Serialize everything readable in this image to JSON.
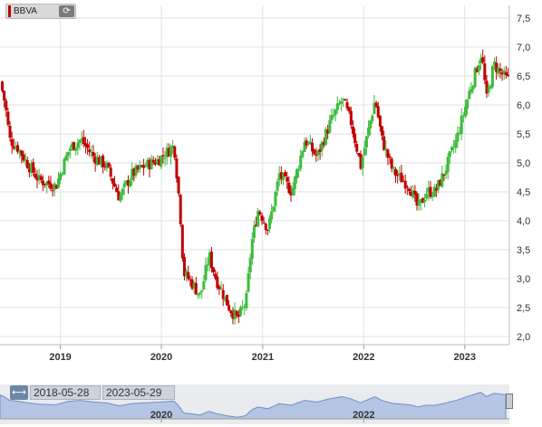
{
  "ticker": {
    "label": "BBVA"
  },
  "icons": {
    "refresh": "refresh-icon",
    "range_handle": "double-arrow-icon"
  },
  "navigator": {
    "start_date": "2018-05-28",
    "end_date": "2023-05-29",
    "x_labels": [
      "2020",
      "2022"
    ]
  },
  "colors": {
    "up": "#3dbb3d",
    "down": "#c00000",
    "grid": "#e2e2e2",
    "navigator_fill": "#b4c6e4"
  },
  "chart_data": {
    "type": "candlestick",
    "title": "",
    "xlabel": "",
    "ylabel": "",
    "x_ticks": [
      "2019",
      "2020",
      "2021",
      "2022",
      "2023"
    ],
    "y_ticks": [
      "2,0",
      "2,5",
      "3,0",
      "3,5",
      "4,0",
      "4,5",
      "5,0",
      "5,5",
      "6,0",
      "6,5",
      "7,0",
      "7,5"
    ],
    "ylim": [
      1.85,
      7.7
    ],
    "x_range": [
      "2018-05-28",
      "2023-05-29"
    ],
    "grid": true,
    "interval": "weekly",
    "approximate_close_path": [
      [
        "2018-05-28",
        6.4
      ],
      [
        "2018-06-15",
        6.0
      ],
      [
        "2018-07-01",
        5.4
      ],
      [
        "2018-08-01",
        5.25
      ],
      [
        "2018-09-01",
        5.0
      ],
      [
        "2018-10-15",
        4.7
      ],
      [
        "2018-12-15",
        4.6
      ],
      [
        "2019-02-01",
        5.25
      ],
      [
        "2019-03-15",
        5.4
      ],
      [
        "2019-05-01",
        5.1
      ],
      [
        "2019-06-15",
        4.95
      ],
      [
        "2019-08-01",
        4.4
      ],
      [
        "2019-09-15",
        4.8
      ],
      [
        "2019-11-01",
        4.95
      ],
      [
        "2019-12-20",
        5.05
      ],
      [
        "2020-02-15",
        5.3
      ],
      [
        "2020-03-07",
        4.2
      ],
      [
        "2020-03-20",
        3.1
      ],
      [
        "2020-04-15",
        2.95
      ],
      [
        "2020-05-20",
        2.7
      ],
      [
        "2020-06-20",
        3.4
      ],
      [
        "2020-07-15",
        3.0
      ],
      [
        "2020-09-01",
        2.5
      ],
      [
        "2020-10-01",
        2.3
      ],
      [
        "2020-11-01",
        2.6
      ],
      [
        "2020-11-20",
        3.6
      ],
      [
        "2020-12-15",
        4.2
      ],
      [
        "2021-01-20",
        3.85
      ],
      [
        "2021-03-01",
        4.8
      ],
      [
        "2021-04-15",
        4.5
      ],
      [
        "2021-06-01",
        5.4
      ],
      [
        "2021-07-15",
        5.1
      ],
      [
        "2021-09-01",
        5.7
      ],
      [
        "2021-10-15",
        6.1
      ],
      [
        "2021-11-15",
        5.7
      ],
      [
        "2021-12-20",
        4.95
      ],
      [
        "2022-02-10",
        6.1
      ],
      [
        "2022-03-07",
        5.4
      ],
      [
        "2022-04-15",
        4.85
      ],
      [
        "2022-06-15",
        4.6
      ],
      [
        "2022-07-15",
        4.2
      ],
      [
        "2022-08-15",
        4.5
      ],
      [
        "2022-09-15",
        4.5
      ],
      [
        "2022-10-15",
        4.8
      ],
      [
        "2022-12-01",
        5.4
      ],
      [
        "2023-01-15",
        6.2
      ],
      [
        "2023-03-01",
        6.9
      ],
      [
        "2023-03-20",
        6.1
      ],
      [
        "2023-04-15",
        6.7
      ],
      [
        "2023-05-29",
        6.45
      ]
    ]
  }
}
